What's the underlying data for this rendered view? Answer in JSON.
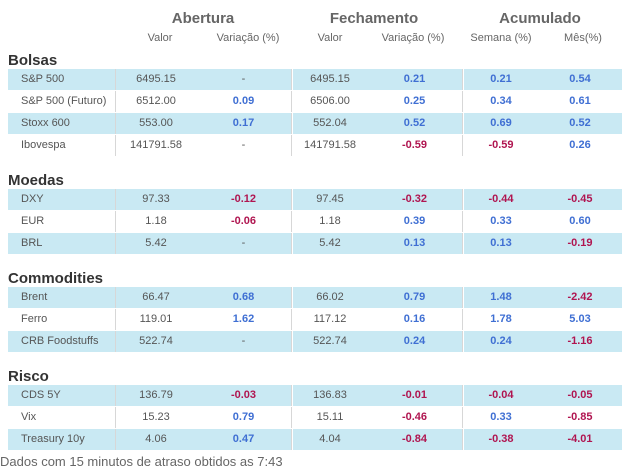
{
  "header": {
    "abertura": "Abertura",
    "fechamento": "Fechamento",
    "acumulado": "Acumulado",
    "sub": {
      "valor_a": "Valor",
      "variacao_a": "Variação (%)",
      "valor_f": "Valor",
      "variacao_f": "Variação (%)",
      "semana": "Semana (%)",
      "mes": "Mês(%)"
    }
  },
  "sections": [
    {
      "title": "Bolsas",
      "rows": [
        {
          "label": "S&P 500",
          "av": "6495.15",
          "avar": "-",
          "fv": "6495.15",
          "fvar": "0.21",
          "sem": "0.21",
          "mes": "0.54"
        },
        {
          "label": "S&P 500 (Futuro)",
          "av": "6512.00",
          "avar": "0.09",
          "fv": "6506.00",
          "fvar": "0.25",
          "sem": "0.34",
          "mes": "0.61"
        },
        {
          "label": "Stoxx 600",
          "av": "553.00",
          "avar": "0.17",
          "fv": "552.04",
          "fvar": "0.52",
          "sem": "0.69",
          "mes": "0.52"
        },
        {
          "label": "Ibovespa",
          "av": "141791.58",
          "avar": "-",
          "fv": "141791.58",
          "fvar": "-0.59",
          "sem": "-0.59",
          "mes": "0.26"
        }
      ]
    },
    {
      "title": "Moedas",
      "rows": [
        {
          "label": "DXY",
          "av": "97.33",
          "avar": "-0.12",
          "fv": "97.45",
          "fvar": "-0.32",
          "sem": "-0.44",
          "mes": "-0.45"
        },
        {
          "label": "EUR",
          "av": "1.18",
          "avar": "-0.06",
          "fv": "1.18",
          "fvar": "0.39",
          "sem": "0.33",
          "mes": "0.60"
        },
        {
          "label": "BRL",
          "av": "5.42",
          "avar": "-",
          "fv": "5.42",
          "fvar": "0.13",
          "sem": "0.13",
          "mes": "-0.19"
        }
      ]
    },
    {
      "title": "Commodities",
      "rows": [
        {
          "label": "Brent",
          "av": "66.47",
          "avar": "0.68",
          "fv": "66.02",
          "fvar": "0.79",
          "sem": "1.48",
          "mes": "-2.42"
        },
        {
          "label": "Ferro",
          "av": "119.01",
          "avar": "1.62",
          "fv": "117.12",
          "fvar": "0.16",
          "sem": "1.78",
          "mes": "5.03"
        },
        {
          "label": "CRB Foodstuffs",
          "av": "522.74",
          "avar": "-",
          "fv": "522.74",
          "fvar": "0.24",
          "sem": "0.24",
          "mes": "-1.16"
        }
      ]
    },
    {
      "title": "Risco",
      "rows": [
        {
          "label": "CDS 5Y",
          "av": "136.79",
          "avar": "-0.03",
          "fv": "136.83",
          "fvar": "-0.01",
          "sem": "-0.04",
          "mes": "-0.05"
        },
        {
          "label": "Vix",
          "av": "15.23",
          "avar": "0.79",
          "fv": "15.11",
          "fvar": "-0.46",
          "sem": "0.33",
          "mes": "-0.85"
        },
        {
          "label": "Treasury 10y",
          "av": "4.06",
          "avar": "0.47",
          "fv": "4.04",
          "fvar": "-0.84",
          "sem": "-0.38",
          "mes": "-4.01"
        }
      ]
    }
  ],
  "footer": "Dados com 15 minutos de atraso obtidos as 7:43",
  "colors": {
    "positive": "#3f6fd3",
    "negative": "#b01550",
    "row_shade": "#c9e9f3"
  }
}
